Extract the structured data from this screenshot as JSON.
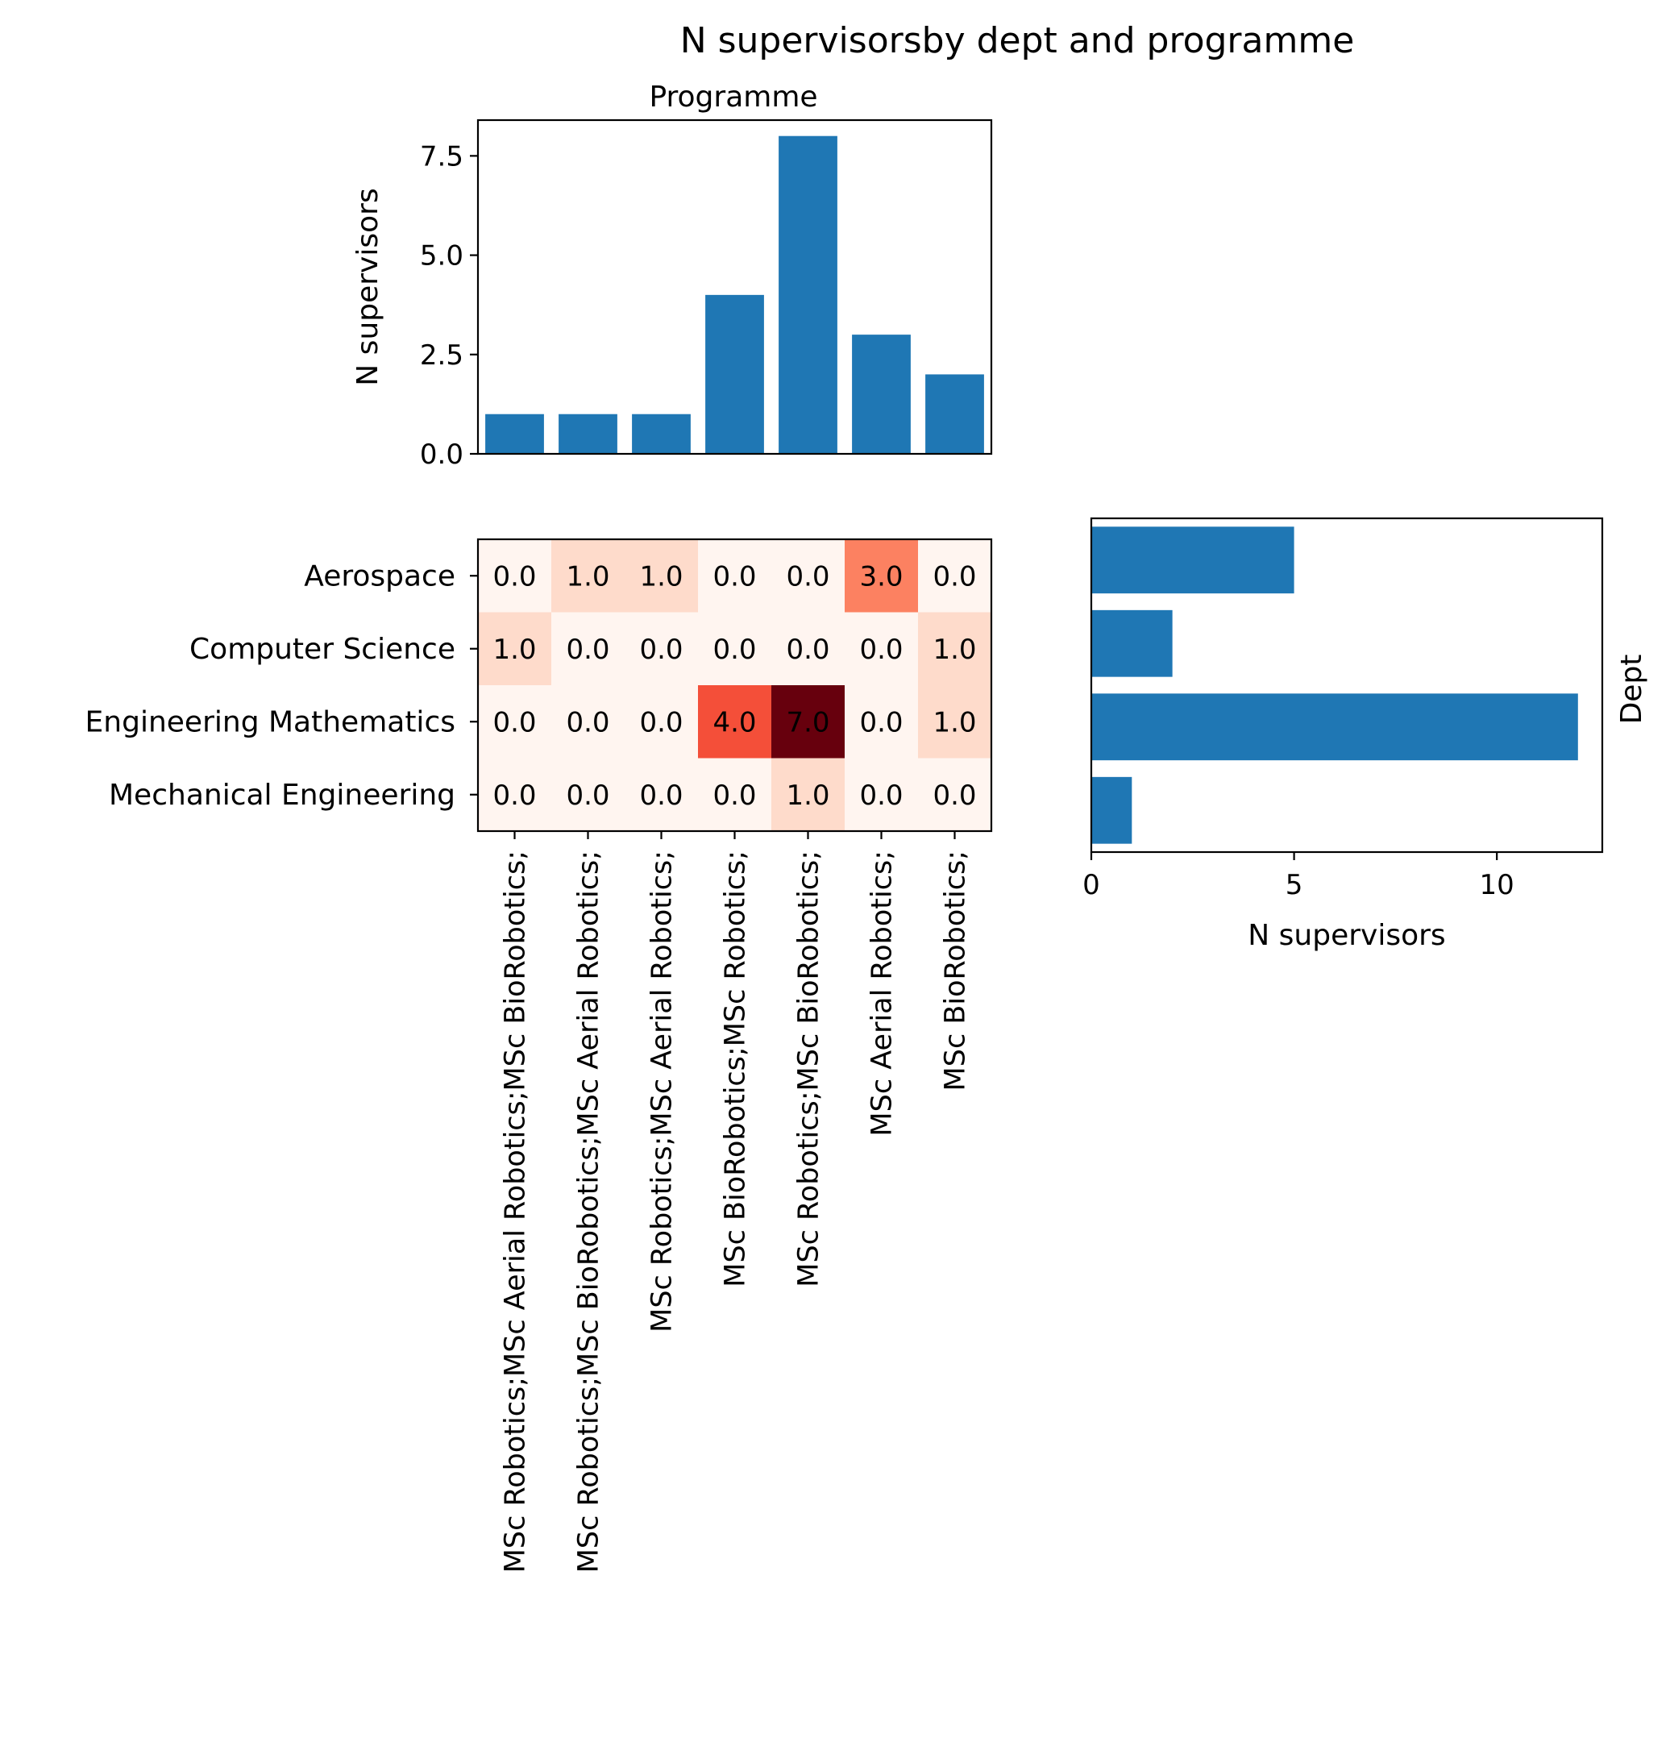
{
  "chart_data": [
    {
      "type": "bar",
      "title": "Programme",
      "ylabel": "N supervisors",
      "xlabel": "",
      "categories": [
        "MSc Robotics;MSc Aerial Robotics;MSc BioRobotics;",
        "MSc Robotics;MSc BioRobotics;MSc Aerial Robotics;",
        "MSc Robotics;MSc Aerial Robotics;",
        "MSc BioRobotics;MSc Robotics;",
        "MSc Robotics;MSc BioRobotics;",
        "MSc Aerial Robotics;",
        "MSc BioRobotics;"
      ],
      "values": [
        1,
        1,
        1,
        4,
        8,
        3,
        2
      ],
      "ylim": [
        0,
        8.4
      ],
      "yticks": [
        "0.0",
        "2.5",
        "5.0",
        "7.5"
      ],
      "bar_color": "#1f77b4"
    },
    {
      "type": "heatmap",
      "rows": [
        "Aerospace",
        "Computer Science",
        "Engineering Mathematics",
        "Mechanical Engineering"
      ],
      "columns": [
        "MSc Robotics;MSc Aerial Robotics;MSc BioRobotics;",
        "MSc Robotics;MSc BioRobotics;MSc Aerial Robotics;",
        "MSc Robotics;MSc Aerial Robotics;",
        "MSc BioRobotics;MSc Robotics;",
        "MSc Robotics;MSc BioRobotics;",
        "MSc Aerial Robotics;",
        "MSc BioRobotics;"
      ],
      "values": [
        [
          0,
          1,
          1,
          0,
          0,
          3,
          0
        ],
        [
          1,
          0,
          0,
          0,
          0,
          0,
          1
        ],
        [
          0,
          0,
          0,
          4,
          7,
          0,
          1
        ],
        [
          0,
          0,
          0,
          0,
          1,
          0,
          0
        ]
      ],
      "cell_labels": [
        [
          "0.0",
          "1.0",
          "1.0",
          "0.0",
          "0.0",
          "3.0",
          "0.0"
        ],
        [
          "1.0",
          "0.0",
          "0.0",
          "0.0",
          "0.0",
          "0.0",
          "1.0"
        ],
        [
          "0.0",
          "0.0",
          "0.0",
          "4.0",
          "7.0",
          "0.0",
          "1.0"
        ],
        [
          "0.0",
          "0.0",
          "0.0",
          "0.0",
          "1.0",
          "0.0",
          "0.0"
        ]
      ],
      "colormap": "Reds"
    },
    {
      "type": "bar",
      "orientation": "horizontal",
      "categories": [
        "Aerospace",
        "Computer Science",
        "Engineering Mathematics",
        "Mechanical Engineering"
      ],
      "values": [
        5,
        2,
        12,
        1
      ],
      "xlabel": "N supervisors",
      "ylabel": "Dept",
      "xlim": [
        0,
        12.6
      ],
      "xticks": [
        "0",
        "5",
        "10"
      ],
      "bar_color": "#1f77b4"
    }
  ],
  "figure": {
    "suptitle": "N supervisorsby dept and programme"
  }
}
